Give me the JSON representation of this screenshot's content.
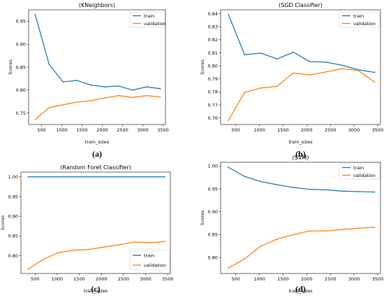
{
  "chart_data": [
    {
      "type": "line",
      "title": "(KNeighbors)",
      "caption": "(a)",
      "xlabel": "train_sizes",
      "ylabel": "Scores",
      "xlim": [
        180,
        3560
      ],
      "ylim": [
        0.725,
        0.975
      ],
      "xticks": [
        500,
        1000,
        1500,
        2000,
        2500,
        3000,
        3500
      ],
      "yticks": [
        0.75,
        0.8,
        0.85,
        0.9,
        0.95
      ],
      "ytick_labels": [
        "0.75",
        "0.80",
        "0.85",
        "0.90",
        "0.95"
      ],
      "legend": "top-right",
      "grid": false,
      "x": [
        343,
        687,
        1030,
        1373,
        1716,
        2060,
        2403,
        2746,
        3090,
        3433
      ],
      "series": [
        {
          "name": "train",
          "color": "#1f77b4",
          "values": [
            0.964,
            0.856,
            0.818,
            0.821,
            0.811,
            0.807,
            0.809,
            0.8,
            0.807,
            0.803
          ]
        },
        {
          "name": "validation",
          "color": "#ff7f0e",
          "values": [
            0.736,
            0.762,
            0.768,
            0.774,
            0.777,
            0.783,
            0.788,
            0.784,
            0.788,
            0.785
          ]
        }
      ]
    },
    {
      "type": "line",
      "title": "(SGD Classifier)",
      "caption": "(b)",
      "xlabel": "train_sizes",
      "ylabel": "Scores",
      "xlim": [
        180,
        3560
      ],
      "ylim": [
        0.755,
        0.843
      ],
      "xticks": [
        500,
        1000,
        1500,
        2000,
        2500,
        3000,
        3500
      ],
      "yticks": [
        0.76,
        0.77,
        0.78,
        0.79,
        0.8,
        0.81,
        0.82,
        0.83,
        0.84
      ],
      "ytick_labels": [
        "0.76",
        "0.77",
        "0.78",
        "0.79",
        "0.80",
        "0.81",
        "0.82",
        "0.83",
        "0.84"
      ],
      "legend": "top-right",
      "grid": false,
      "x": [
        343,
        687,
        1030,
        1373,
        1716,
        2060,
        2403,
        2746,
        3090,
        3433
      ],
      "series": [
        {
          "name": "train",
          "color": "#1f77b4",
          "values": [
            0.8395,
            0.8085,
            0.8098,
            0.8053,
            0.8105,
            0.8033,
            0.8028,
            0.8005,
            0.797,
            0.795
          ]
        },
        {
          "name": "validation",
          "color": "#ff7f0e",
          "values": [
            0.758,
            0.7797,
            0.783,
            0.7843,
            0.7945,
            0.793,
            0.7953,
            0.7978,
            0.7965,
            0.7875
          ]
        }
      ]
    },
    {
      "type": "line",
      "title": "(Random Foret Classifier)",
      "caption": "(c)",
      "xlabel": "train_sizes",
      "ylabel": "Scores",
      "xlim": [
        180,
        3560
      ],
      "ylim": [
        0.755,
        1.012
      ],
      "xticks": [
        500,
        1000,
        1500,
        2000,
        2500,
        3000,
        3500
      ],
      "yticks": [
        0.8,
        0.85,
        0.9,
        0.95,
        1.0
      ],
      "ytick_labels": [
        "0.80",
        "0.85",
        "0.90",
        "0.95",
        "1.00"
      ],
      "legend": "bottom-right",
      "grid": false,
      "x": [
        343,
        687,
        1030,
        1373,
        1716,
        2060,
        2403,
        2746,
        3090,
        3433
      ],
      "series": [
        {
          "name": "train",
          "color": "#1f77b4",
          "values": [
            1.0,
            1.0,
            1.0,
            1.0,
            1.0,
            1.0,
            1.0,
            1.0,
            1.0,
            1.0
          ]
        },
        {
          "name": "validation",
          "color": "#ff7f0e",
          "values": [
            0.766,
            0.791,
            0.808,
            0.814,
            0.816,
            0.822,
            0.828,
            0.835,
            0.833,
            0.836
          ]
        }
      ]
    },
    {
      "type": "line",
      "title": "(SVM)",
      "caption": "(d)",
      "xlabel": "train_sizes",
      "ylabel": "Scores",
      "xlim": [
        180,
        3560
      ],
      "ylim": [
        0.765,
        1.008
      ],
      "xticks": [
        500,
        1000,
        1500,
        2000,
        2500,
        3000,
        3500
      ],
      "yticks": [
        0.8,
        0.85,
        0.9,
        0.95,
        1.0
      ],
      "ytick_labels": [
        "0.80",
        "0.85",
        "0.90",
        "0.95",
        "1.00"
      ],
      "legend": "top-right",
      "grid": false,
      "x": [
        343,
        687,
        1030,
        1373,
        1716,
        2060,
        2403,
        2746,
        3090,
        3433
      ],
      "series": [
        {
          "name": "train",
          "color": "#1f77b4",
          "values": [
            0.997,
            0.977,
            0.966,
            0.959,
            0.953,
            0.949,
            0.948,
            0.945,
            0.944,
            0.943
          ]
        },
        {
          "name": "validation",
          "color": "#ff7f0e",
          "values": [
            0.777,
            0.797,
            0.825,
            0.84,
            0.85,
            0.858,
            0.858,
            0.861,
            0.864,
            0.866
          ]
        }
      ]
    }
  ]
}
